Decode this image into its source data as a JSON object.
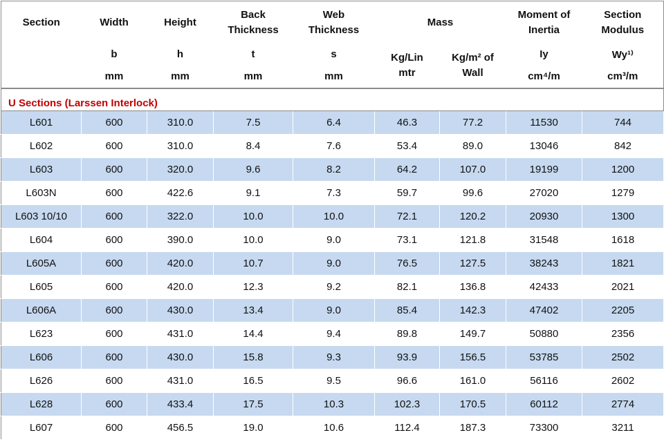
{
  "header": {
    "titles": [
      "Section",
      "Width",
      "Height",
      "Back Thickness",
      "Web Thickness",
      "Mass",
      "Moment of Inertia",
      "Section Modulus"
    ],
    "symbols": [
      "b",
      "h",
      "t",
      "s",
      "Iy",
      "Wy¹⁾"
    ],
    "mass_units": [
      "Kg/Lin mtr",
      "Kg/m² of Wall"
    ],
    "units": [
      "mm",
      "mm",
      "mm",
      "mm",
      "cm⁴/m",
      "cm³/m"
    ]
  },
  "table": {
    "section_title": "U Sections (Larssen Interlock)",
    "rows": [
      [
        "L601",
        "600",
        "310.0",
        "7.5",
        "6.4",
        "46.3",
        "77.2",
        "11530",
        "744"
      ],
      [
        "L602",
        "600",
        "310.0",
        "8.4",
        "7.6",
        "53.4",
        "89.0",
        "13046",
        "842"
      ],
      [
        "L603",
        "600",
        "320.0",
        "9.6",
        "8.2",
        "64.2",
        "107.0",
        "19199",
        "1200"
      ],
      [
        "L603N",
        "600",
        "422.6",
        "9.1",
        "7.3",
        "59.7",
        "99.6",
        "27020",
        "1279"
      ],
      [
        "L603 10/10",
        "600",
        "322.0",
        "10.0",
        "10.0",
        "72.1",
        "120.2",
        "20930",
        "1300"
      ],
      [
        "L604",
        "600",
        "390.0",
        "10.0",
        "9.0",
        "73.1",
        "121.8",
        "31548",
        "1618"
      ],
      [
        "L605A",
        "600",
        "420.0",
        "10.7",
        "9.0",
        "76.5",
        "127.5",
        "38243",
        "1821"
      ],
      [
        "L605",
        "600",
        "420.0",
        "12.3",
        "9.2",
        "82.1",
        "136.8",
        "42433",
        "2021"
      ],
      [
        "L606A",
        "600",
        "430.0",
        "13.4",
        "9.0",
        "85.4",
        "142.3",
        "47402",
        "2205"
      ],
      [
        "L623",
        "600",
        "431.0",
        "14.4",
        "9.4",
        "89.8",
        "149.7",
        "50880",
        "2356"
      ],
      [
        "L606",
        "600",
        "430.0",
        "15.8",
        "9.3",
        "93.9",
        "156.5",
        "53785",
        "2502"
      ],
      [
        "L626",
        "600",
        "431.0",
        "16.5",
        "9.5",
        "96.6",
        "161.0",
        "56116",
        "2602"
      ],
      [
        "L628",
        "600",
        "433.4",
        "17.5",
        "10.3",
        "102.3",
        "170.5",
        "60112",
        "2774"
      ],
      [
        "L607",
        "600",
        "456.5",
        "19.0",
        "10.6",
        "112.4",
        "187.3",
        "73300",
        "3211"
      ]
    ]
  }
}
